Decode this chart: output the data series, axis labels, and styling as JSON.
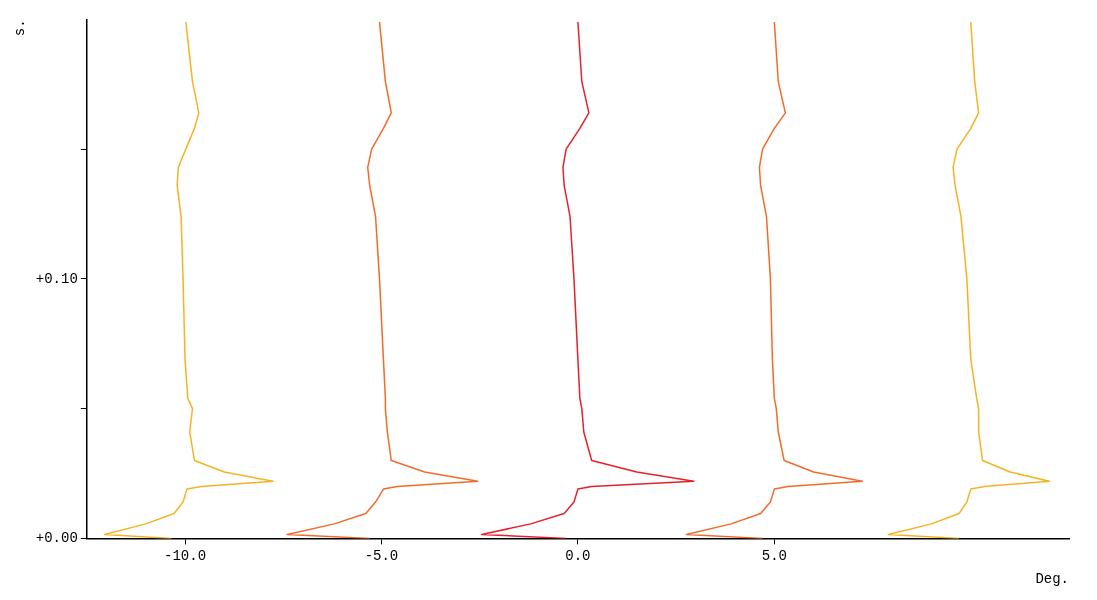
{
  "chart_data": {
    "type": "line",
    "xlabel": "Deg.",
    "ylabel": "s.",
    "xlim": [
      -12.5,
      12.5
    ],
    "ylim": [
      0,
      0.2
    ],
    "xticks": [
      {
        "value": -10,
        "label": "-10.0"
      },
      {
        "value": -5,
        "label": "-5.0"
      },
      {
        "value": 0,
        "label": "0.0"
      },
      {
        "value": 5,
        "label": "5.0"
      }
    ],
    "yticks": [
      {
        "value": 0,
        "label": "+0.00"
      },
      {
        "value": 0.05,
        "label": null
      },
      {
        "value": 0.1,
        "label": "+0.10"
      },
      {
        "value": 0.15,
        "label": null
      }
    ],
    "grid": false,
    "legend": false,
    "marker": "none",
    "series": [
      {
        "color": "#f5b324",
        "x": [
          -10.35,
          -12.05,
          -11.0,
          -10.28,
          -10.05,
          -9.95,
          -9.58,
          -7.76,
          -9.0,
          -9.76,
          -9.88,
          -9.81,
          -9.93,
          -10.0,
          -10.05,
          -10.1,
          -10.2,
          -10.17,
          -9.98,
          -9.76,
          -9.65,
          -9.81,
          -9.98
        ],
        "values": [
          0,
          0.0015,
          0.0056,
          0.0096,
          0.014,
          0.019,
          0.02,
          0.022,
          0.0256,
          0.03,
          0.041,
          0.05,
          0.054,
          0.069,
          0.1,
          0.124,
          0.136,
          0.143,
          0.15,
          0.158,
          0.164,
          0.176,
          0.199
        ]
      },
      {
        "color": "#f26b2a",
        "x": [
          -5.3,
          -7.4,
          -6.2,
          -5.4,
          -5.15,
          -4.95,
          -4.6,
          -2.55,
          -3.9,
          -4.75,
          -4.85,
          -4.9,
          -4.9,
          -4.95,
          -5.05,
          -5.15,
          -5.3,
          -5.35,
          -5.25,
          -4.95,
          -4.75,
          -4.9,
          -5.05
        ],
        "values": [
          0,
          0.0015,
          0.0056,
          0.0096,
          0.014,
          0.019,
          0.02,
          0.022,
          0.0256,
          0.03,
          0.041,
          0.05,
          0.054,
          0.069,
          0.1,
          0.124,
          0.136,
          0.143,
          0.15,
          0.158,
          0.164,
          0.176,
          0.199
        ]
      },
      {
        "color": "#e8202a",
        "x": [
          -0.3,
          -2.45,
          -1.2,
          -0.35,
          -0.1,
          0.0,
          0.35,
          2.95,
          1.5,
          0.35,
          0.15,
          0.1,
          0.05,
          0.0,
          -0.1,
          -0.2,
          -0.35,
          -0.38,
          -0.3,
          0.05,
          0.28,
          0.1,
          0.0
        ],
        "values": [
          0,
          0.0015,
          0.0056,
          0.0096,
          0.014,
          0.019,
          0.02,
          0.022,
          0.0256,
          0.03,
          0.041,
          0.05,
          0.054,
          0.069,
          0.1,
          0.124,
          0.136,
          0.143,
          0.15,
          0.158,
          0.164,
          0.176,
          0.199
        ]
      },
      {
        "color": "#f26b2a",
        "x": [
          4.7,
          2.76,
          3.9,
          4.65,
          4.9,
          5.0,
          5.35,
          7.24,
          6.0,
          5.25,
          5.1,
          5.05,
          5.0,
          4.95,
          4.9,
          4.8,
          4.65,
          4.62,
          4.7,
          5.0,
          5.28,
          5.1,
          5.0
        ],
        "values": [
          0,
          0.0015,
          0.0056,
          0.0096,
          0.014,
          0.019,
          0.02,
          0.022,
          0.0256,
          0.03,
          0.041,
          0.05,
          0.054,
          0.069,
          0.1,
          0.124,
          0.136,
          0.143,
          0.15,
          0.158,
          0.164,
          0.176,
          0.199
        ]
      },
      {
        "color": "#f5b324",
        "x": [
          9.7,
          7.9,
          9.0,
          9.7,
          9.9,
          10.0,
          10.35,
          12.0,
          11.0,
          10.3,
          10.2,
          10.2,
          10.15,
          10.0,
          9.9,
          9.75,
          9.6,
          9.55,
          9.65,
          10.0,
          10.2,
          10.1,
          10.0
        ],
        "values": [
          0,
          0.0015,
          0.0056,
          0.0096,
          0.014,
          0.019,
          0.02,
          0.022,
          0.0256,
          0.03,
          0.041,
          0.05,
          0.054,
          0.069,
          0.1,
          0.124,
          0.136,
          0.143,
          0.15,
          0.158,
          0.164,
          0.176,
          0.199
        ]
      }
    ]
  }
}
